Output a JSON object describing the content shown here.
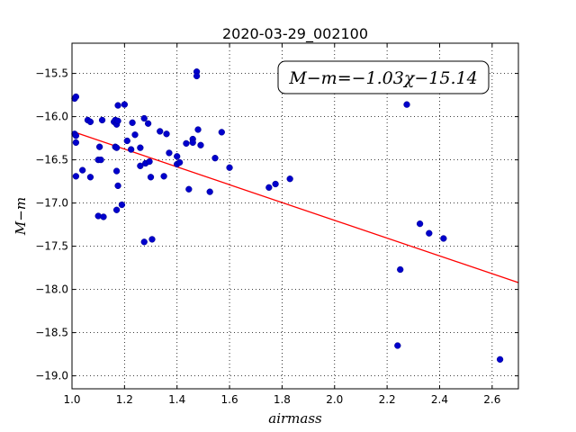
{
  "chart_data": {
    "type": "scatter",
    "title": "2020-03-29_002100",
    "xlabel": "airmass",
    "ylabel": "M−m",
    "xlim": [
      1.0,
      2.7
    ],
    "ylim": [
      -19.15,
      -15.15
    ],
    "y_inverted": true,
    "grid": true,
    "grid_style": "dotted",
    "x_ticks": [
      1.0,
      1.2,
      1.4,
      1.6,
      1.8,
      2.0,
      2.2,
      2.4,
      2.6
    ],
    "x_tick_labels": [
      "1.0",
      "1.2",
      "1.4",
      "1.6",
      "1.8",
      "2.0",
      "2.2",
      "2.4",
      "2.6"
    ],
    "y_ticks": [
      -15.5,
      -16.0,
      -16.5,
      -17.0,
      -17.5,
      -18.0,
      -18.5,
      -19.0
    ],
    "y_tick_labels": [
      "−15.5",
      "−16.0",
      "−16.5",
      "−17.0",
      "−17.5",
      "−18.0",
      "−18.5",
      "−19.0"
    ],
    "annotation": "M−m=−1.03χ−15.14",
    "annotation_placement": "top-right",
    "fit_line": {
      "slope": -1.03,
      "intercept": -15.14,
      "color": "#ff0000",
      "x_range": [
        1.02,
        2.7
      ]
    },
    "point_color": "#0000cc",
    "points": [
      [
        1.01,
        -15.79
      ],
      [
        1.015,
        -15.77
      ],
      [
        1.01,
        -16.2
      ],
      [
        1.015,
        -16.22
      ],
      [
        1.015,
        -16.3
      ],
      [
        1.015,
        -16.69
      ],
      [
        1.04,
        -16.62
      ],
      [
        1.06,
        -16.04
      ],
      [
        1.07,
        -16.06
      ],
      [
        1.07,
        -16.7
      ],
      [
        1.1,
        -16.5
      ],
      [
        1.1,
        -17.15
      ],
      [
        1.105,
        -16.35
      ],
      [
        1.11,
        -16.5
      ],
      [
        1.115,
        -16.04
      ],
      [
        1.12,
        -17.16
      ],
      [
        1.16,
        -16.06
      ],
      [
        1.165,
        -16.04
      ],
      [
        1.17,
        -16.09
      ],
      [
        1.17,
        -16.63
      ],
      [
        1.165,
        -16.35
      ],
      [
        1.17,
        -16.36
      ],
      [
        1.17,
        -17.08
      ],
      [
        1.175,
        -16.8
      ],
      [
        1.175,
        -15.87
      ],
      [
        1.175,
        -16.05
      ],
      [
        1.19,
        -17.02
      ],
      [
        1.2,
        -15.86
      ],
      [
        1.21,
        -16.28
      ],
      [
        1.225,
        -16.38
      ],
      [
        1.23,
        -16.07
      ],
      [
        1.24,
        -16.21
      ],
      [
        1.26,
        -16.57
      ],
      [
        1.26,
        -16.36
      ],
      [
        1.275,
        -16.02
      ],
      [
        1.28,
        -16.54
      ],
      [
        1.275,
        -17.45
      ],
      [
        1.29,
        -16.08
      ],
      [
        1.295,
        -16.52
      ],
      [
        1.3,
        -16.7
      ],
      [
        1.305,
        -17.42
      ],
      [
        1.335,
        -16.17
      ],
      [
        1.35,
        -16.69
      ],
      [
        1.36,
        -16.2
      ],
      [
        1.37,
        -16.42
      ],
      [
        1.4,
        -16.46
      ],
      [
        1.4,
        -16.55
      ],
      [
        1.41,
        -16.53
      ],
      [
        1.435,
        -16.31
      ],
      [
        1.445,
        -16.84
      ],
      [
        1.46,
        -16.26
      ],
      [
        1.46,
        -16.3
      ],
      [
        1.475,
        -15.48
      ],
      [
        1.475,
        -15.53
      ],
      [
        1.48,
        -16.15
      ],
      [
        1.49,
        -16.33
      ],
      [
        1.525,
        -16.87
      ],
      [
        1.545,
        -16.48
      ],
      [
        1.57,
        -16.18
      ],
      [
        1.6,
        -16.59
      ],
      [
        1.75,
        -16.82
      ],
      [
        1.775,
        -16.78
      ],
      [
        1.83,
        -16.72
      ],
      [
        2.24,
        -18.65
      ],
      [
        2.25,
        -17.77
      ],
      [
        2.275,
        -15.86
      ],
      [
        2.325,
        -17.24
      ],
      [
        2.36,
        -17.35
      ],
      [
        2.415,
        -17.41
      ],
      [
        2.63,
        -18.81
      ]
    ]
  }
}
